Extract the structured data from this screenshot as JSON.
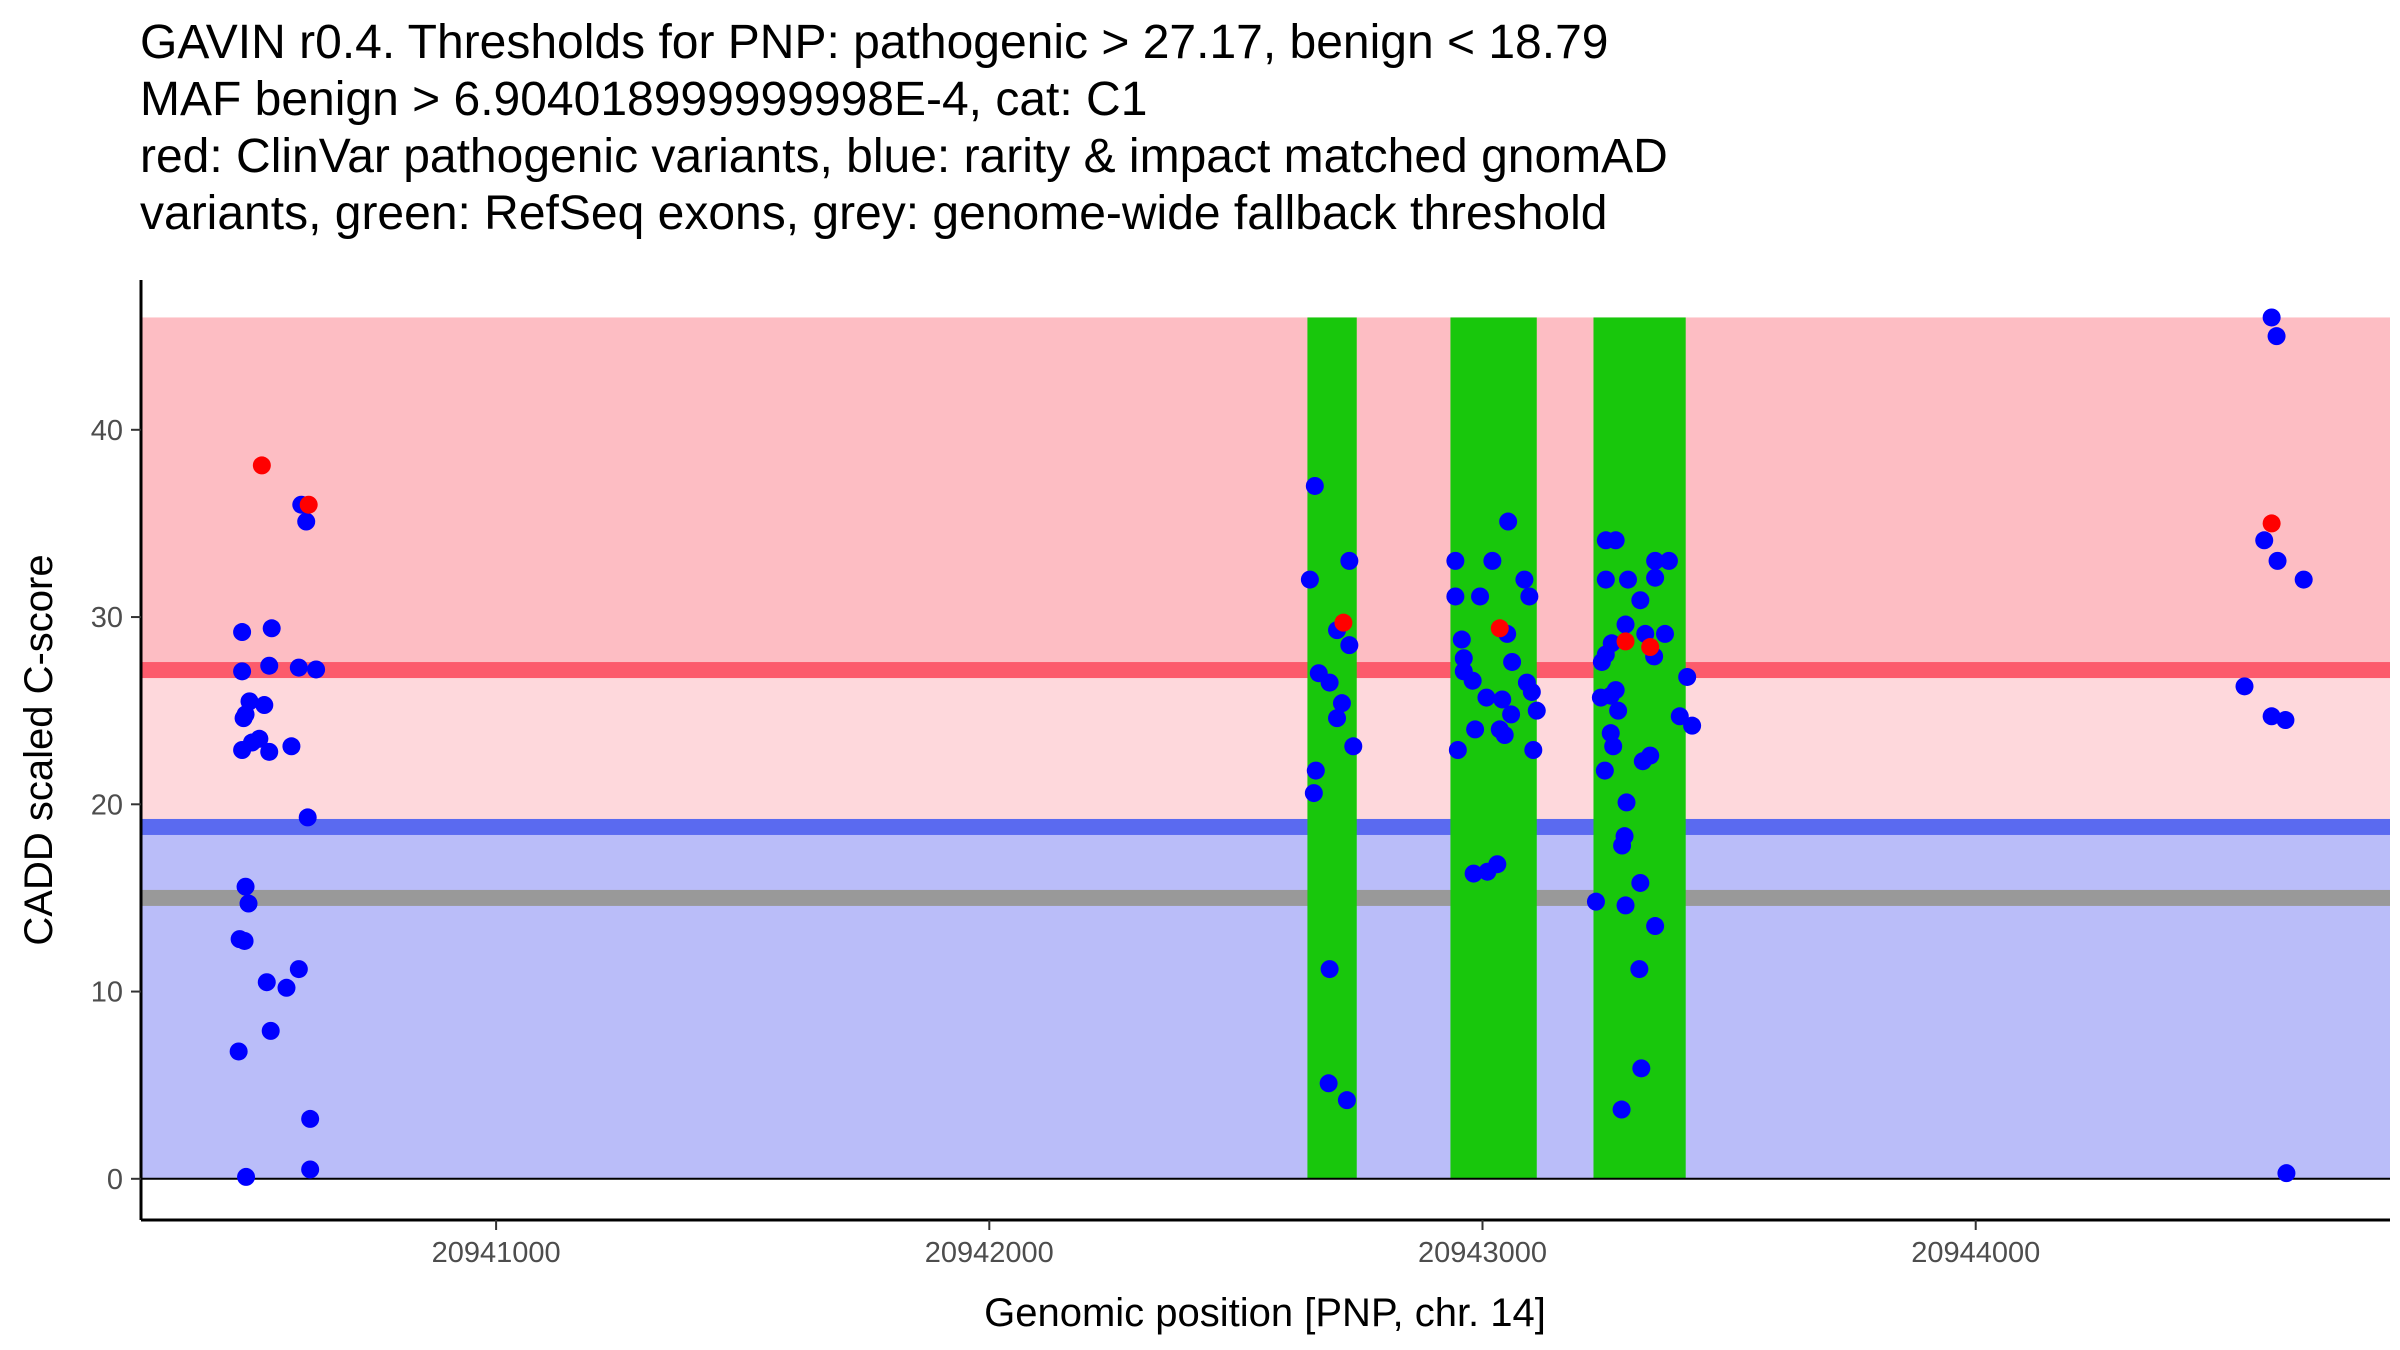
{
  "chart_data": {
    "type": "scatter",
    "title_lines": [
      "GAVIN r0.4. Thresholds for PNP: pathogenic > 27.17, benign < 18.79",
      "MAF benign > 6.904018999999998E-4, cat: C1",
      "red: ClinVar pathogenic variants, blue: rarity & impact matched gnomAD",
      "variants, green: RefSeq exons, grey: genome-wide fallback threshold"
    ],
    "xlabel": "Genomic position [PNP, chr. 14]",
    "ylabel": "CADD scaled C-score",
    "xlim": [
      20940280,
      20944840
    ],
    "ylim": [
      -2.2,
      48.0
    ],
    "x_ticks": [
      20941000,
      20942000,
      20943000,
      20944000
    ],
    "x_tick_labels": [
      "20941000",
      "20942000",
      "20943000",
      "20944000"
    ],
    "y_ticks": [
      0,
      10,
      20,
      30,
      40
    ],
    "y_tick_labels": [
      "0",
      "10",
      "20",
      "30",
      "40"
    ],
    "thresholds": {
      "pathogenic": 27.17,
      "benign": 18.79,
      "fallback": 15.0
    },
    "band_range": {
      "x": [
        20940280,
        20944840
      ],
      "y": [
        0,
        46
      ]
    },
    "zones": [
      {
        "name": "benign-zone",
        "y": [
          0,
          18.79
        ],
        "color": "#babdf9"
      },
      {
        "name": "intermediate-zone",
        "y": [
          18.79,
          27.17
        ],
        "color": "#fed8dc"
      },
      {
        "name": "pathogenic-zone",
        "y": [
          27.17,
          46
        ],
        "color": "#fdbdc3"
      }
    ],
    "threshold_colors": {
      "pathogenic": "#fc5b6c",
      "benign": "#5a6af0",
      "fallback": "#999999"
    },
    "exons": [
      {
        "start": 20942645,
        "end": 20942745
      },
      {
        "start": 20942935,
        "end": 20943110
      },
      {
        "start": 20943225,
        "end": 20943412
      }
    ],
    "exon_color": "#18c70c",
    "series": [
      {
        "name": "ClinVar pathogenic variants",
        "color": "#ff0000",
        "points": [
          [
            20940525,
            38.1
          ],
          [
            20940620,
            36.0
          ],
          [
            20942718,
            29.7
          ],
          [
            20943035,
            29.4
          ],
          [
            20943290,
            28.7
          ],
          [
            20943340,
            28.4
          ],
          [
            20944600,
            35.0
          ]
        ]
      },
      {
        "name": "rarity & impact matched gnomAD variants",
        "color": "#0000ff",
        "points": [
          [
            20940485,
            29.2
          ],
          [
            20940485,
            27.1
          ],
          [
            20940492,
            24.8
          ],
          [
            20940488,
            24.6
          ],
          [
            20940500,
            25.5
          ],
          [
            20940505,
            23.3
          ],
          [
            20940485,
            22.9
          ],
          [
            20940520,
            23.5
          ],
          [
            20940530,
            25.3
          ],
          [
            20940540,
            27.4
          ],
          [
            20940545,
            29.4
          ],
          [
            20940540,
            22.8
          ],
          [
            20940585,
            23.1
          ],
          [
            20940605,
            36.0
          ],
          [
            20940615,
            35.1
          ],
          [
            20940600,
            27.3
          ],
          [
            20940635,
            27.2
          ],
          [
            20940618,
            19.3
          ],
          [
            20940492,
            15.6
          ],
          [
            20940498,
            14.7
          ],
          [
            20940480,
            12.8
          ],
          [
            20940490,
            12.7
          ],
          [
            20940535,
            10.5
          ],
          [
            20940575,
            10.2
          ],
          [
            20940600,
            11.2
          ],
          [
            20940543,
            7.9
          ],
          [
            20940478,
            6.8
          ],
          [
            20940623,
            3.2
          ],
          [
            20940493,
            0.1
          ],
          [
            20940623,
            0.5
          ],
          [
            20942660,
            37.0
          ],
          [
            20942650,
            32.0
          ],
          [
            20942730,
            33.0
          ],
          [
            20942705,
            29.3
          ],
          [
            20942730,
            28.5
          ],
          [
            20942668,
            27.0
          ],
          [
            20942690,
            26.5
          ],
          [
            20942715,
            25.4
          ],
          [
            20942705,
            24.6
          ],
          [
            20942738,
            23.1
          ],
          [
            20942662,
            21.8
          ],
          [
            20942658,
            20.6
          ],
          [
            20942690,
            11.2
          ],
          [
            20942688,
            5.1
          ],
          [
            20942725,
            4.2
          ],
          [
            20942945,
            33.0
          ],
          [
            20942945,
            31.1
          ],
          [
            20942958,
            28.8
          ],
          [
            20942962,
            27.8
          ],
          [
            20942962,
            27.1
          ],
          [
            20942980,
            26.6
          ],
          [
            20942995,
            31.1
          ],
          [
            20943020,
            33.0
          ],
          [
            20943052,
            35.1
          ],
          [
            20943085,
            32.0
          ],
          [
            20943095,
            31.1
          ],
          [
            20943050,
            29.1
          ],
          [
            20943060,
            27.6
          ],
          [
            20943090,
            26.5
          ],
          [
            20943100,
            26.0
          ],
          [
            20943110,
            25.0
          ],
          [
            20943008,
            25.7
          ],
          [
            20943040,
            25.6
          ],
          [
            20943058,
            24.8
          ],
          [
            20943035,
            24.0
          ],
          [
            20943045,
            23.7
          ],
          [
            20942985,
            24.0
          ],
          [
            20942950,
            22.9
          ],
          [
            20943103,
            22.9
          ],
          [
            20942982,
            16.3
          ],
          [
            20943010,
            16.4
          ],
          [
            20943030,
            16.8
          ],
          [
            20943250,
            34.1
          ],
          [
            20943270,
            34.1
          ],
          [
            20943250,
            32.0
          ],
          [
            20943295,
            32.0
          ],
          [
            20943320,
            30.9
          ],
          [
            20943350,
            33.0
          ],
          [
            20943378,
            33.0
          ],
          [
            20943350,
            32.1
          ],
          [
            20943290,
            29.6
          ],
          [
            20943330,
            29.1
          ],
          [
            20943370,
            29.1
          ],
          [
            20943262,
            28.6
          ],
          [
            20943250,
            28.0
          ],
          [
            20943348,
            27.9
          ],
          [
            20943242,
            27.6
          ],
          [
            20943270,
            26.1
          ],
          [
            20943240,
            25.7
          ],
          [
            20943260,
            25.8
          ],
          [
            20943415,
            26.8
          ],
          [
            20943275,
            25.0
          ],
          [
            20943400,
            24.7
          ],
          [
            20943425,
            24.2
          ],
          [
            20943260,
            23.8
          ],
          [
            20943265,
            23.1
          ],
          [
            20943248,
            21.8
          ],
          [
            20943325,
            22.3
          ],
          [
            20943340,
            22.6
          ],
          [
            20943292,
            20.1
          ],
          [
            20943288,
            18.3
          ],
          [
            20943283,
            17.8
          ],
          [
            20943320,
            15.8
          ],
          [
            20943230,
            14.8
          ],
          [
            20943290,
            14.6
          ],
          [
            20943350,
            13.5
          ],
          [
            20943318,
            11.2
          ],
          [
            20943322,
            5.9
          ],
          [
            20943282,
            3.7
          ],
          [
            20944600,
            46.0
          ],
          [
            20944610,
            45.0
          ],
          [
            20944585,
            34.1
          ],
          [
            20944612,
            33.0
          ],
          [
            20944665,
            32.0
          ],
          [
            20944545,
            26.3
          ],
          [
            20944600,
            24.7
          ],
          [
            20944628,
            24.5
          ],
          [
            20944630,
            0.3
          ]
        ]
      }
    ]
  }
}
